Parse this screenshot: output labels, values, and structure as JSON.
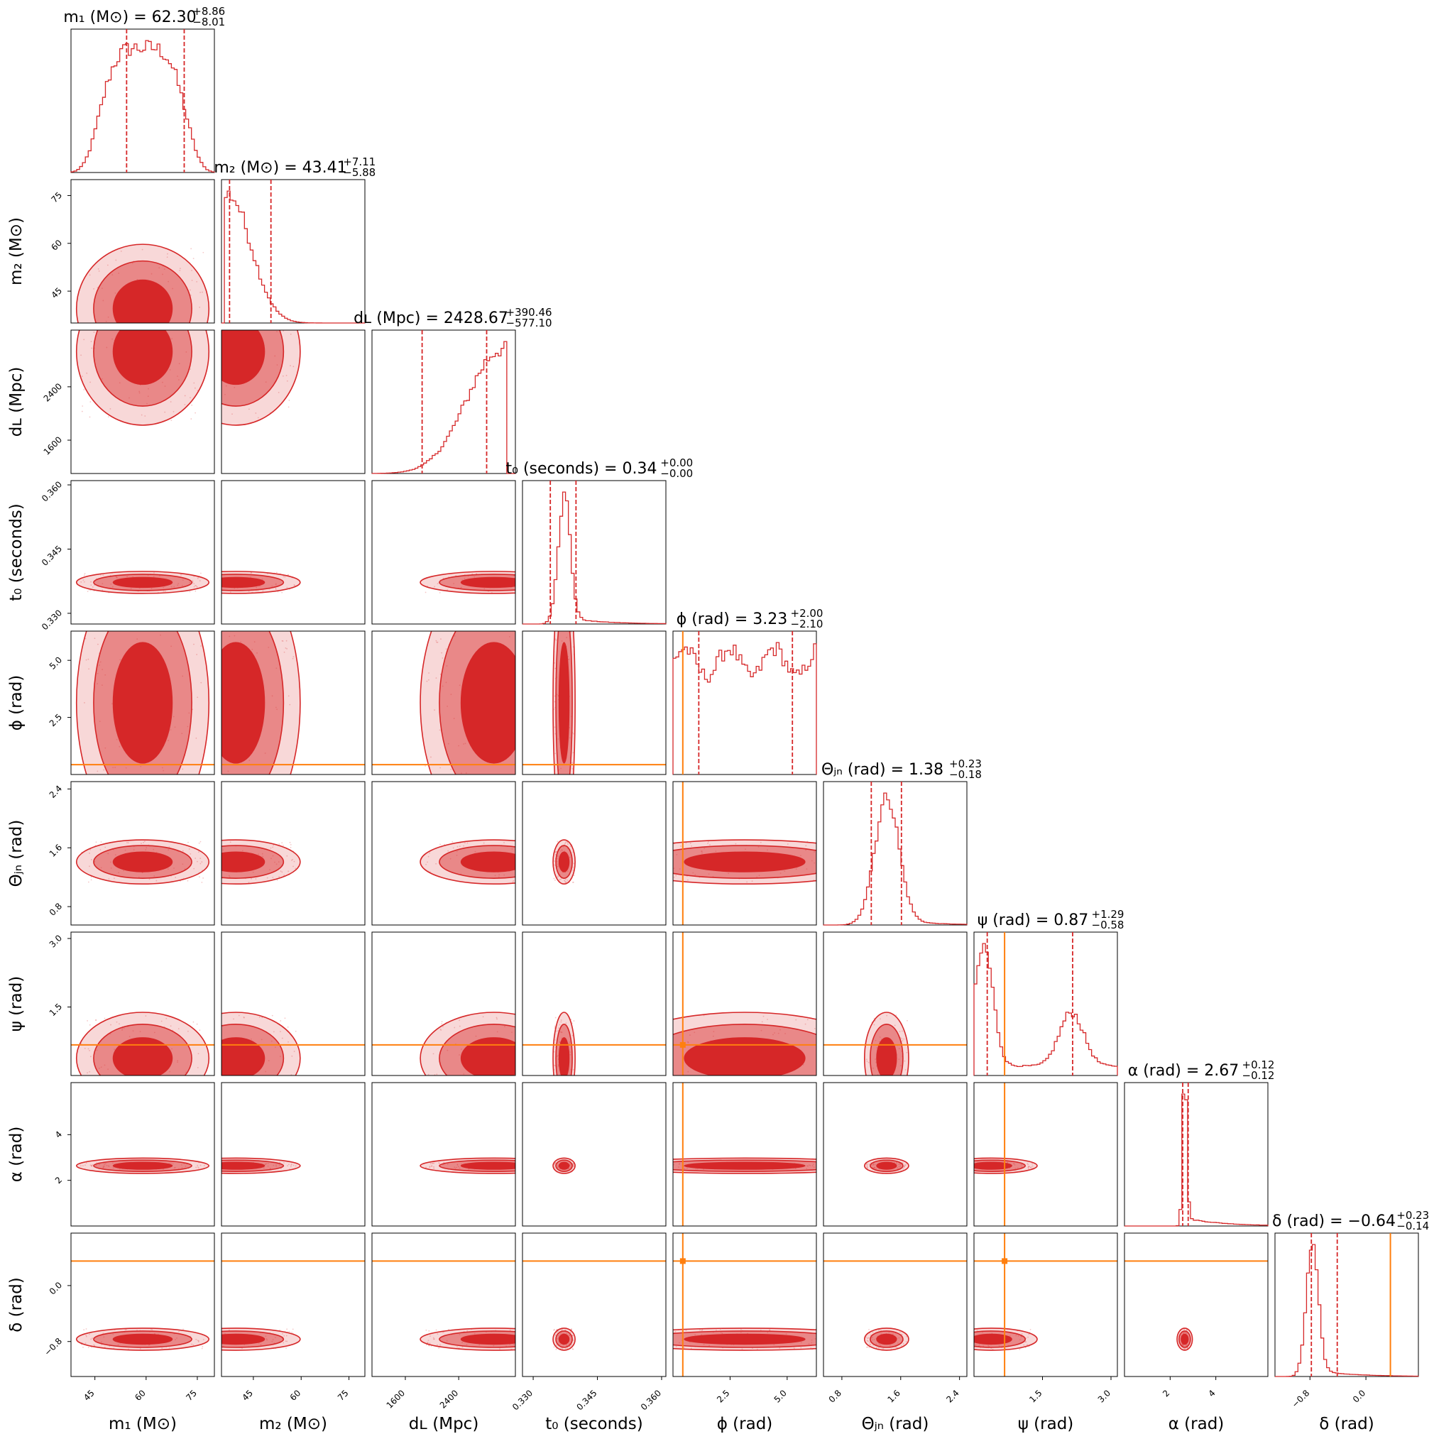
{
  "figure": {
    "data_color": "#d62728",
    "truth_color": "#ff7f0e"
  },
  "chart_data": {
    "type": "corner",
    "parameters": [
      {
        "key": "m1",
        "label": "m₁ (M⊙)",
        "range": [
          38,
          80
        ],
        "ticks": [
          "45",
          "60",
          "75"
        ],
        "tick_values": [
          45,
          60,
          75
        ],
        "title_main": "m₁ (M⊙) = 62.30",
        "title_sup": "+8.86",
        "title_sub": "−8.01",
        "median": 62.3,
        "q_low": 54.29,
        "q_high": 71.16,
        "truth": null
      },
      {
        "key": "m2",
        "label": "m₂ (M⊙)",
        "range": [
          35,
          80
        ],
        "ticks": [
          "45",
          "60",
          "75"
        ],
        "tick_values": [
          45,
          60,
          75
        ],
        "title_main": "m₂ (M⊙) = 43.41",
        "title_sup": "+7.11",
        "title_sub": "−5.88",
        "median": 43.41,
        "q_low": 37.53,
        "q_high": 50.52,
        "truth": null
      },
      {
        "key": "dL",
        "label": "dʟ (Mpc)",
        "range": [
          1100,
          3250
        ],
        "ticks": [
          "1600",
          "2400"
        ],
        "tick_values": [
          1600,
          2400
        ],
        "title_main": "dʟ (Mpc) = 2428.67",
        "title_sup": "+390.46",
        "title_sub": "−577.10",
        "median": 2428.67,
        "q_low": 1851.57,
        "q_high": 2819.13,
        "truth": null
      },
      {
        "key": "t0",
        "label": "t₀ (seconds)",
        "range": [
          0.3275,
          0.361
        ],
        "ticks": [
          "0.330",
          "0.345",
          "0.360"
        ],
        "tick_values": [
          0.33,
          0.345,
          0.36
        ],
        "title_main": "t₀ (seconds) = 0.34",
        "title_sup": "+0.00",
        "title_sub": "−0.00",
        "median": 0.337,
        "q_low": 0.334,
        "q_high": 0.34,
        "truth": null
      },
      {
        "key": "phi",
        "label": "ϕ (rad)",
        "range": [
          0,
          6.28
        ],
        "ticks": [
          "2.5",
          "5.0"
        ],
        "tick_values": [
          2.5,
          5.0
        ],
        "title_main": "ϕ (rad) = 3.23",
        "title_sup": "+2.00",
        "title_sub": "−2.10",
        "median": 3.23,
        "q_low": 1.13,
        "q_high": 5.23,
        "truth": 0.43
      },
      {
        "key": "theta_jn",
        "label": "Θⱼₙ (rad)",
        "range": [
          0.55,
          2.5
        ],
        "ticks": [
          "0.8",
          "1.6",
          "2.4"
        ],
        "tick_values": [
          0.8,
          1.6,
          2.4
        ],
        "title_main": "Θⱼₙ (rad) = 1.38",
        "title_sup": "+0.23",
        "title_sub": "−0.18",
        "median": 1.38,
        "q_low": 1.2,
        "q_high": 1.61,
        "truth": null
      },
      {
        "key": "psi",
        "label": "ψ (rad)",
        "range": [
          0,
          3.14
        ],
        "ticks": [
          "1.5",
          "3.0"
        ],
        "tick_values": [
          1.5,
          3.0
        ],
        "title_main": "ψ (rad) = 0.87",
        "title_sup": "+1.29",
        "title_sub": "−0.58",
        "median": 0.87,
        "q_low": 0.29,
        "q_high": 2.16,
        "truth": 0.67
      },
      {
        "key": "alpha",
        "label": "α (rad)",
        "range": [
          0,
          6.28
        ],
        "ticks": [
          "2",
          "4"
        ],
        "tick_values": [
          2,
          4
        ],
        "title_main": "α (rad) = 2.67",
        "title_sup": "+0.12",
        "title_sub": "−0.12",
        "median": 2.67,
        "q_low": 2.55,
        "q_high": 2.79,
        "truth": null
      },
      {
        "key": "delta",
        "label": "δ (rad)",
        "range": [
          -1.3,
          0.75
        ],
        "ticks": [
          "−0.8",
          "0.0"
        ],
        "tick_values": [
          -0.8,
          0.0
        ],
        "title_main": "δ (rad) = −0.64",
        "title_sup": "+0.23",
        "title_sub": "−0.14",
        "median": -0.64,
        "q_low": -0.78,
        "q_high": -0.41,
        "truth": 0.35
      }
    ],
    "series": [
      {
        "param": "m1",
        "center": 0.5,
        "width": 0.36,
        "shape": "plateau"
      },
      {
        "param": "m2",
        "center": 0.1,
        "width": 0.35,
        "shape": "halfnormal"
      },
      {
        "param": "dL",
        "center": 0.85,
        "width": 0.4,
        "shape": "ramp"
      },
      {
        "param": "t0",
        "center": 0.29,
        "width": 0.06,
        "shape": "narrow"
      },
      {
        "param": "phi",
        "center": 0.5,
        "width": 1.0,
        "shape": "flat"
      },
      {
        "param": "theta_jn",
        "center": 0.44,
        "width": 0.12,
        "shape": "narrow"
      },
      {
        "param": "psi",
        "center": 0.12,
        "width": 0.25,
        "shape": "bimodal"
      },
      {
        "param": "alpha",
        "center": 0.42,
        "width": 0.02,
        "shape": "spike"
      },
      {
        "param": "delta",
        "center": 0.26,
        "width": 0.06,
        "shape": "narrow"
      }
    ]
  }
}
